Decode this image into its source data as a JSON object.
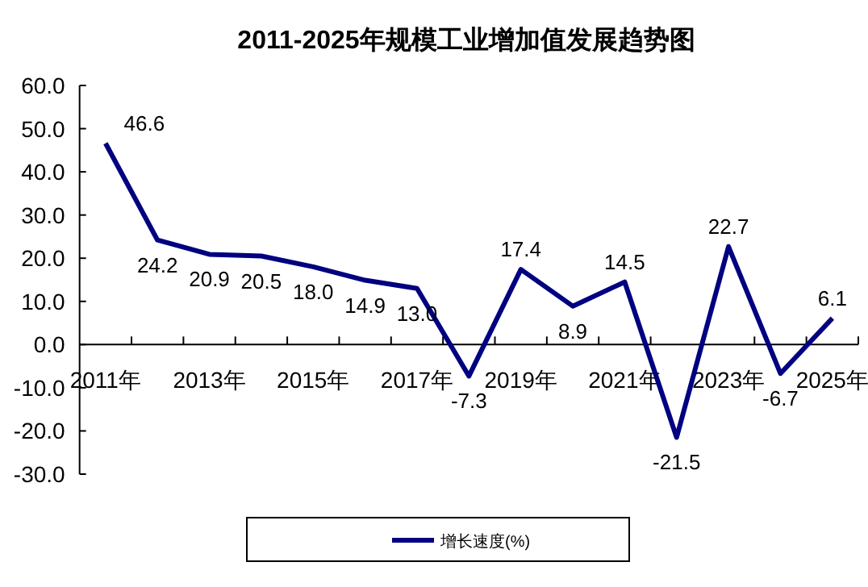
{
  "chart_data": {
    "type": "line",
    "title": "2011-2025年规模工业增加值发展趋势图",
    "categories": [
      "2011年",
      null,
      "2013年",
      null,
      "2015年",
      null,
      "2017年",
      null,
      "2019年",
      null,
      "2021年",
      null,
      "2023年",
      null,
      "2025年"
    ],
    "series": [
      {
        "name": "增长速度(%)",
        "color": "#000080",
        "values": [
          46.6,
          24.2,
          20.9,
          20.5,
          18.0,
          14.9,
          13.0,
          -7.3,
          17.4,
          8.9,
          14.5,
          -21.5,
          22.7,
          -6.7,
          6.1
        ],
        "value_labels": [
          "46.6",
          "24.2",
          "20.9",
          "20.5",
          "18.0",
          "14.9",
          "13.0",
          "-7.3",
          "17.4",
          "8.9",
          "14.5",
          "-21.5",
          "22.7",
          "-6.7",
          "6.1"
        ]
      }
    ],
    "ylim": [
      -30,
      60
    ],
    "yticks": [
      {
        "value": 60,
        "label": "60.0"
      },
      {
        "value": 50,
        "label": "50.0"
      },
      {
        "value": 40,
        "label": "40.0"
      },
      {
        "value": 30,
        "label": "30.0"
      },
      {
        "value": 20,
        "label": "20.0"
      },
      {
        "value": 10,
        "label": "10.0"
      },
      {
        "value": 0,
        "label": "0.0"
      },
      {
        "value": -10,
        "label": "-10.0"
      },
      {
        "value": -20,
        "label": "-20.0"
      },
      {
        "value": -30,
        "label": "-30.0"
      }
    ],
    "legend": "bottom",
    "grid": false,
    "marker": "none",
    "line_style": "solid"
  }
}
